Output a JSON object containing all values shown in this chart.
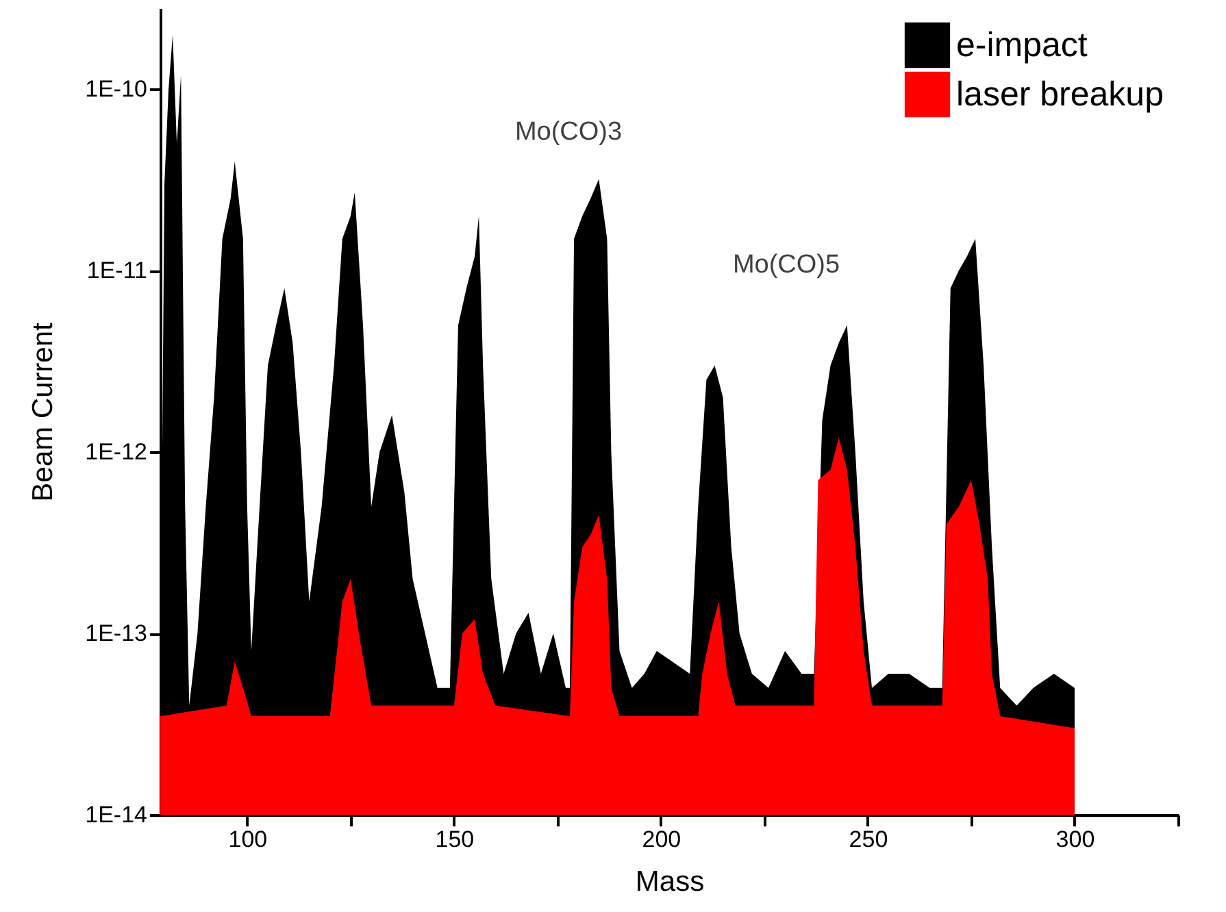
{
  "chart_data": {
    "type": "area",
    "xlabel": "Mass",
    "ylabel": "Beam Current",
    "log": "y",
    "grid": false,
    "legend": "top right",
    "xlim": [
      79,
      325
    ],
    "ylim": [
      1e-14,
      2.8e-10
    ],
    "xticks": [
      100,
      {
        "value": 125,
        "label": null
      },
      150,
      {
        "value": 175,
        "label": null
      },
      200,
      {
        "value": 225,
        "label": null
      },
      250,
      {
        "value": 275,
        "label": null
      },
      300,
      {
        "value": 325,
        "label": null
      }
    ],
    "yticks": [
      {
        "value": 1e-14,
        "label": "1E-14"
      },
      {
        "value": 1e-13,
        "label": "1E-13"
      },
      {
        "value": 1e-12,
        "label": "1E-12"
      },
      {
        "value": 1e-11,
        "label": "1E-11"
      },
      {
        "value": 1e-10,
        "label": "1E-10"
      }
    ],
    "series": [
      {
        "name": "e-impact",
        "color": "#000000",
        "x": [
          79,
          80,
          81,
          82,
          83,
          84,
          85,
          86,
          88,
          90,
          92,
          94,
          96,
          97,
          99,
          100,
          101,
          103,
          105,
          107,
          109,
          111,
          113,
          115,
          118,
          121,
          123,
          125,
          126,
          128,
          130,
          132,
          135,
          138,
          140,
          143,
          146,
          149,
          151,
          153,
          155,
          156,
          157,
          159,
          162,
          165,
          168,
          171,
          174,
          177,
          178,
          179,
          181,
          183,
          185,
          187,
          188,
          190,
          193,
          196,
          199,
          207,
          209,
          211,
          213,
          215,
          217,
          219,
          222,
          226,
          230,
          234,
          237,
          239,
          241,
          243,
          245,
          247,
          249,
          251,
          255,
          260,
          265,
          268,
          270,
          272,
          274,
          276,
          278,
          280,
          282,
          286,
          290,
          295,
          300
        ],
        "values": [
          4e-14,
          3e-11,
          1e-10,
          2e-10,
          5e-11,
          1.2e-10,
          5e-13,
          4e-14,
          1e-13,
          5e-13,
          2e-12,
          1.5e-11,
          2.5e-11,
          4e-11,
          1.5e-11,
          5e-13,
          8e-14,
          5e-13,
          3e-12,
          5e-12,
          8e-12,
          4e-12,
          1e-12,
          1.5e-13,
          5e-13,
          3e-12,
          1.5e-11,
          2e-11,
          2.7e-11,
          5e-12,
          5e-13,
          1e-12,
          1.6e-12,
          6e-13,
          2e-13,
          1e-13,
          5e-14,
          5e-14,
          5e-12,
          8e-12,
          1.2e-11,
          2e-11,
          3e-12,
          2e-13,
          6e-14,
          1e-13,
          1.3e-13,
          6e-14,
          1e-13,
          5e-14,
          5e-14,
          1.5e-11,
          2e-11,
          2.5e-11,
          3.2e-11,
          1.5e-11,
          1e-12,
          8e-14,
          5e-14,
          6e-14,
          8e-14,
          6e-14,
          5e-13,
          2.5e-12,
          3e-12,
          2e-12,
          3e-13,
          1e-13,
          6e-14,
          5e-14,
          8e-14,
          6e-14,
          6e-14,
          1.5e-12,
          3e-12,
          4e-12,
          5e-12,
          1e-12,
          1.5e-13,
          5e-14,
          6e-14,
          6e-14,
          5e-14,
          5e-14,
          8e-12,
          1e-11,
          1.2e-11,
          1.5e-11,
          3e-12,
          3e-13,
          5e-14,
          4e-14,
          5e-14,
          6e-14,
          5e-14
        ]
      },
      {
        "name": "laser breakup",
        "color": "#ff0000",
        "x": [
          79,
          95,
          97,
          99,
          101,
          120,
          123,
          125,
          127,
          130,
          150,
          152,
          155,
          157,
          160,
          178,
          179,
          181,
          183,
          185,
          187,
          188,
          190,
          209,
          210,
          212,
          214,
          216,
          218,
          237,
          238,
          241,
          243,
          245,
          247,
          249,
          251,
          268,
          269,
          272,
          275,
          277,
          279,
          280,
          282,
          300
        ],
        "values": [
          3.5e-14,
          4e-14,
          7e-14,
          5e-14,
          3.5e-14,
          3.5e-14,
          1.5e-13,
          2e-13,
          1e-13,
          4e-14,
          4e-14,
          1e-13,
          1.2e-13,
          6e-14,
          4e-14,
          3.5e-14,
          1.5e-13,
          3e-13,
          3.5e-13,
          4.5e-13,
          2e-13,
          5e-14,
          3.5e-14,
          3.5e-14,
          6e-14,
          1e-13,
          1.5e-13,
          6e-14,
          4e-14,
          4e-14,
          7e-13,
          8e-13,
          1.2e-12,
          8e-13,
          3e-13,
          8e-14,
          4e-14,
          4e-14,
          4e-13,
          5e-13,
          7e-13,
          4e-13,
          2e-13,
          6e-14,
          3.5e-14,
          3e-14
        ]
      }
    ],
    "annotations": [
      "Mo(CO)3",
      "Mo(CO)5"
    ]
  }
}
